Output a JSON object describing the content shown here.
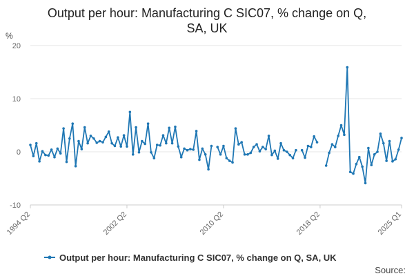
{
  "chart_data": {
    "type": "line",
    "title_line1": "Output per hour: Manufacturing C SIC07, % change on Q,",
    "title_line2": "SA, UK",
    "ylabel": "%",
    "xlabel": "",
    "ylim": [
      -10,
      20
    ],
    "yticks": [
      "20",
      "10",
      "0",
      "-10"
    ],
    "xtick_labels": [
      "1994 Q2",
      "2002 Q2",
      "2010 Q2",
      "2018 Q2",
      "2025 Q1"
    ],
    "grid": true,
    "legend_position": "bottom",
    "source_label": "Source:",
    "color": "#1f77b4",
    "series": [
      {
        "name": "Output per hour: Manufacturing C SIC07, % change on Q, SA, UK",
        "start": "1994 Q2",
        "values": [
          1.3,
          -0.8,
          1.6,
          -1.8,
          0.1,
          -0.6,
          -0.7,
          0.4,
          -1.0,
          0.6,
          -0.3,
          4.4,
          -1.9,
          2.5,
          5.3,
          -2.7,
          2.0,
          0.5,
          4.6,
          1.6,
          3.0,
          2.5,
          1.7,
          2.0,
          1.8,
          2.8,
          3.8,
          1.6,
          1.1,
          2.7,
          1.0,
          3.1,
          1.0,
          7.5,
          -0.5,
          4.6,
          -0.1,
          2.0,
          1.5,
          5.3,
          -0.1,
          -1.2,
          1.3,
          1.2,
          3.1,
          1.6,
          4.5,
          1.6,
          4.7,
          1.0,
          -1.0,
          0.6,
          0.3,
          0.5,
          0.4,
          3.9,
          -1.5,
          0.6,
          -0.5,
          -3.3,
          1.1,
          null,
          0.9,
          -0.5,
          1.1,
          -1.2,
          -1.7,
          -2.0,
          4.4,
          1.4,
          1.8,
          -0.5,
          -0.5,
          -0.2,
          0.9,
          1.4,
          0.1,
          0.9,
          0.5,
          3.0,
          -0.6,
          0.2,
          -1.3,
          1.6,
          0.3,
          0.0,
          -0.6,
          -1.2,
          0.3,
          null,
          0.3,
          -1.1,
          1.1,
          0.9,
          2.9,
          1.8,
          null,
          null,
          -2.6,
          -0.2,
          1.4,
          0.9,
          3.0,
          5.0,
          3.2,
          15.9,
          -3.8,
          -4.1,
          -2.3,
          -1.0,
          -2.8,
          -5.9,
          0.7,
          -2.5,
          -0.5,
          0.0,
          3.4,
          1.6,
          -1.7,
          2.0,
          -1.8,
          -1.4,
          0.4,
          2.6
        ]
      }
    ]
  }
}
